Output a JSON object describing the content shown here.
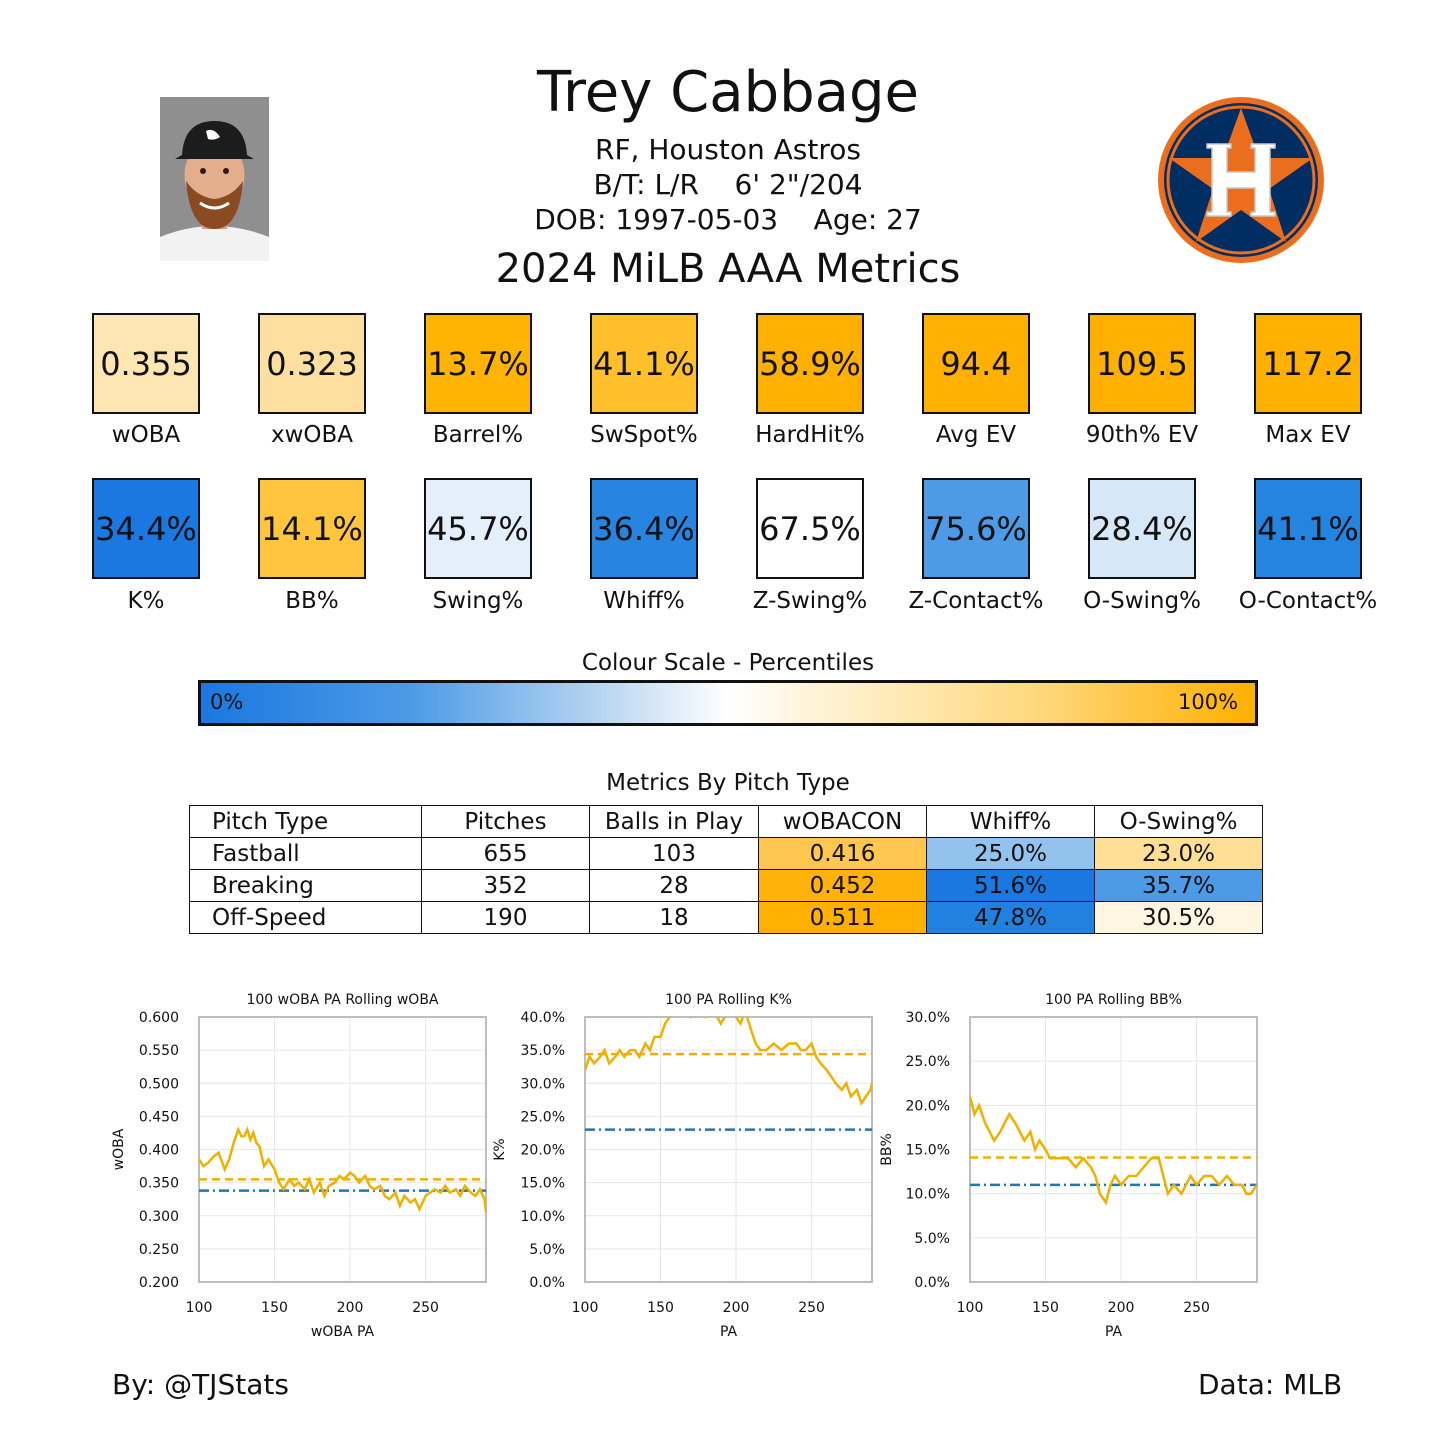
{
  "header": {
    "name": "Trey Cabbage",
    "position_team": "RF, Houston Astros",
    "bt_height": "B/T: L/R    6' 2\"/204",
    "dob_age": "DOB: 1997-05-03    Age: 27",
    "subtitle": "2024 MiLB AAA Metrics"
  },
  "colors": {
    "scale_low": "#1a78e0",
    "scale_mid": "#ffffff",
    "scale_high": "#ffb000",
    "season_line": "#f0b000",
    "league_line": "#1f77b4",
    "rolling_line": "#f0b000"
  },
  "metrics_row1": [
    {
      "label": "wOBA",
      "value": "0.355",
      "color": "#fde6b2"
    },
    {
      "label": "xwOBA",
      "value": "0.323",
      "color": "#fde0a0"
    },
    {
      "label": "Barrel%",
      "value": "13.7%",
      "color": "#ffb302"
    },
    {
      "label": "SwSpot%",
      "value": "41.1%",
      "color": "#ffc02c"
    },
    {
      "label": "HardHit%",
      "value": "58.9%",
      "color": "#ffb000"
    },
    {
      "label": "Avg EV",
      "value": "94.4",
      "color": "#ffb000"
    },
    {
      "label": "90th% EV",
      "value": "109.5",
      "color": "#ffb000"
    },
    {
      "label": "Max EV",
      "value": "117.2",
      "color": "#ffb000"
    }
  ],
  "metrics_row2": [
    {
      "label": "K%",
      "value": "34.4%",
      "color": "#1a78e0"
    },
    {
      "label": "BB%",
      "value": "14.1%",
      "color": "#ffc53e"
    },
    {
      "label": "Swing%",
      "value": "45.7%",
      "color": "#e3effb"
    },
    {
      "label": "Whiff%",
      "value": "36.4%",
      "color": "#2785e1"
    },
    {
      "label": "Z-Swing%",
      "value": "67.5%",
      "color": "#ffffff"
    },
    {
      "label": "Z-Contact%",
      "value": "75.6%",
      "color": "#4d9be6"
    },
    {
      "label": "O-Swing%",
      "value": "28.4%",
      "color": "#d6e7f8"
    },
    {
      "label": "O-Contact%",
      "value": "41.1%",
      "color": "#2484e0"
    }
  ],
  "scale": {
    "title": "Colour Scale - Percentiles",
    "min_label": "0%",
    "max_label": "100%"
  },
  "pitch_table": {
    "title": "Metrics By Pitch Type",
    "headers": [
      "Pitch Type",
      "Pitches",
      "Balls in Play",
      "wOBACON",
      "Whiff%",
      "O-Swing%"
    ],
    "rows": [
      {
        "cells": [
          "Fastball",
          "655",
          "103",
          "0.416",
          "25.0%",
          "23.0%"
        ],
        "colors": [
          "#ffffff",
          "#ffffff",
          "#ffffff",
          "#ffc750",
          "#94c2ee",
          "#ffdf96"
        ]
      },
      {
        "cells": [
          "Breaking",
          "352",
          "28",
          "0.452",
          "51.6%",
          "35.7%"
        ],
        "colors": [
          "#ffffff",
          "#ffffff",
          "#ffffff",
          "#ffb30a",
          "#1a78e0",
          "#4d9be6"
        ]
      },
      {
        "cells": [
          "Off-Speed",
          "190",
          "18",
          "0.511",
          "47.8%",
          "30.5%"
        ],
        "colors": [
          "#ffffff",
          "#ffffff",
          "#ffffff",
          "#ffb000",
          "#2181e0",
          "#fff6e2"
        ]
      }
    ]
  },
  "chart_data": [
    {
      "type": "line",
      "title": "100 wOBA PA Rolling wOBA",
      "xlabel": "wOBA PA",
      "ylabel": "wOBA",
      "xlim": [
        100,
        290
      ],
      "ylim": [
        0.2,
        0.6
      ],
      "xticks": [
        "100",
        "150",
        "200",
        "250"
      ],
      "yticks": [
        "0.200",
        "0.250",
        "0.300",
        "0.350",
        "0.400",
        "0.450",
        "0.500",
        "0.550",
        "0.600"
      ],
      "season_value": 0.355,
      "league_value": 0.338,
      "series": [
        {
          "x": [
            100,
            103,
            106,
            110,
            113,
            117,
            120,
            123,
            126,
            128,
            130,
            132,
            134,
            136,
            138,
            140,
            143,
            146,
            150,
            153,
            156,
            160,
            163,
            166,
            170,
            173,
            176,
            180,
            183,
            186,
            190,
            193,
            196,
            200,
            203,
            206,
            210,
            213,
            216,
            220,
            223,
            226,
            230,
            233,
            236,
            240,
            243,
            246,
            250,
            253,
            256,
            260,
            263,
            266,
            270,
            273,
            276,
            280,
            283,
            286,
            289,
            290
          ],
          "y": [
            0.385,
            0.375,
            0.38,
            0.39,
            0.395,
            0.37,
            0.385,
            0.41,
            0.43,
            0.42,
            0.42,
            0.43,
            0.415,
            0.425,
            0.41,
            0.405,
            0.375,
            0.385,
            0.37,
            0.35,
            0.34,
            0.355,
            0.345,
            0.35,
            0.34,
            0.355,
            0.335,
            0.35,
            0.33,
            0.345,
            0.35,
            0.36,
            0.355,
            0.365,
            0.36,
            0.35,
            0.36,
            0.345,
            0.34,
            0.345,
            0.33,
            0.325,
            0.335,
            0.315,
            0.33,
            0.32,
            0.325,
            0.31,
            0.33,
            0.335,
            0.34,
            0.335,
            0.345,
            0.335,
            0.34,
            0.33,
            0.345,
            0.335,
            0.33,
            0.34,
            0.325,
            0.305
          ]
        }
      ]
    },
    {
      "type": "line",
      "title": "100 PA Rolling K%",
      "xlabel": "PA",
      "ylabel": "K%",
      "xlim": [
        100,
        290
      ],
      "ylim": [
        0,
        40
      ],
      "xticks": [
        "100",
        "150",
        "200",
        "250"
      ],
      "yticks": [
        "0.0%",
        "5.0%",
        "10.0%",
        "15.0%",
        "20.0%",
        "25.0%",
        "30.0%",
        "35.0%",
        "40.0%"
      ],
      "season_value": 34.4,
      "league_value": 23.0,
      "series": [
        {
          "x": [
            100,
            103,
            106,
            110,
            113,
            116,
            120,
            123,
            126,
            130,
            133,
            136,
            140,
            143,
            146,
            150,
            153,
            156,
            160,
            165,
            170,
            175,
            180,
            185,
            190,
            195,
            200,
            203,
            206,
            210,
            213,
            216,
            220,
            225,
            230,
            235,
            240,
            243,
            246,
            250,
            253,
            256,
            260,
            263,
            266,
            270,
            273,
            276,
            280,
            283,
            286,
            289,
            290
          ],
          "y": [
            32,
            34,
            33,
            34,
            35,
            33,
            34,
            35,
            34,
            35,
            35,
            34,
            36,
            35,
            37,
            37,
            39,
            40,
            41,
            41,
            40,
            41,
            40,
            41,
            39,
            41,
            40,
            39,
            41,
            38,
            36,
            35,
            35,
            36,
            35,
            36,
            36,
            35,
            35,
            36,
            34,
            33,
            32,
            31,
            30,
            29,
            30,
            28,
            29,
            27,
            28,
            29,
            30
          ]
        }
      ]
    },
    {
      "type": "line",
      "title": "100 PA Rolling BB%",
      "xlabel": "PA",
      "ylabel": "BB%",
      "xlim": [
        100,
        290
      ],
      "ylim": [
        0,
        30
      ],
      "xticks": [
        "100",
        "150",
        "200",
        "250"
      ],
      "yticks": [
        "0.0%",
        "5.0%",
        "10.0%",
        "15.0%",
        "20.0%",
        "25.0%",
        "30.0%"
      ],
      "season_value": 14.1,
      "league_value": 11.0,
      "series": [
        {
          "x": [
            100,
            103,
            106,
            110,
            113,
            116,
            120,
            123,
            126,
            130,
            133,
            136,
            140,
            143,
            146,
            150,
            153,
            156,
            160,
            165,
            170,
            175,
            180,
            183,
            186,
            190,
            193,
            196,
            200,
            205,
            210,
            215,
            220,
            225,
            228,
            231,
            235,
            240,
            243,
            246,
            250,
            255,
            260,
            265,
            270,
            275,
            280,
            283,
            286,
            290
          ],
          "y": [
            21,
            19,
            20,
            18,
            17,
            16,
            17,
            18,
            19,
            18,
            17,
            16,
            17,
            15,
            16,
            15,
            14,
            14,
            14,
            14,
            13,
            14,
            13,
            12,
            10,
            9,
            11,
            12,
            11,
            12,
            12,
            13,
            14,
            14,
            12,
            10,
            11,
            10,
            11,
            12,
            11,
            12,
            12,
            11,
            12,
            11,
            11,
            10,
            10,
            11
          ]
        }
      ]
    }
  ],
  "credits": {
    "left": "By: @TJStats",
    "right": "Data: MLB"
  }
}
